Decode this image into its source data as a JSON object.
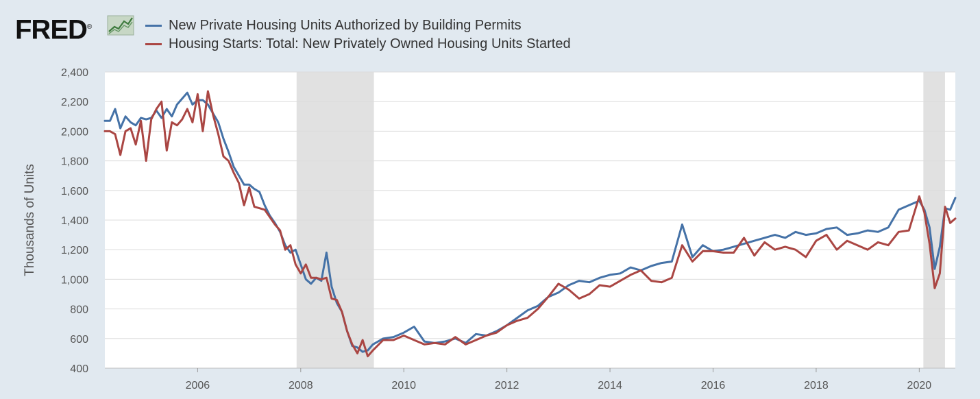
{
  "brand": {
    "name": "FRED",
    "registered_mark": "®"
  },
  "chart_data": {
    "type": "line",
    "title": "",
    "xlabel": "",
    "ylabel": "Thousands of Units",
    "ylim": [
      400,
      2400
    ],
    "yticks": [
      400,
      600,
      800,
      1000,
      1200,
      1400,
      1600,
      1800,
      2000,
      2200,
      2400
    ],
    "ytick_labels": [
      "400",
      "600",
      "800",
      "1,000",
      "1,200",
      "1,400",
      "1,600",
      "1,800",
      "2,000",
      "2,200",
      "2,400"
    ],
    "xlim": [
      2004.2,
      2020.7
    ],
    "xticks": [
      2006,
      2008,
      2010,
      2012,
      2014,
      2016,
      2018,
      2020
    ],
    "xtick_labels": [
      "2006",
      "2008",
      "2010",
      "2012",
      "2014",
      "2016",
      "2018",
      "2020"
    ],
    "grid": "horizontal",
    "legend_position": "top-left",
    "recessions": [
      [
        2007.92,
        2009.42
      ],
      [
        2020.08,
        2020.5
      ]
    ],
    "recession_color": "#e1e1e1",
    "series": [
      {
        "name": "New Private Housing Units Authorized by Building Permits",
        "color": "#4572a7",
        "x": [
          2004.2,
          2004.3,
          2004.4,
          2004.5,
          2004.6,
          2004.7,
          2004.8,
          2004.9,
          2005.0,
          2005.1,
          2005.2,
          2005.3,
          2005.4,
          2005.5,
          2005.6,
          2005.7,
          2005.8,
          2005.9,
          2006.0,
          2006.1,
          2006.2,
          2006.3,
          2006.4,
          2006.5,
          2006.6,
          2006.7,
          2006.8,
          2006.9,
          2007.0,
          2007.1,
          2007.2,
          2007.3,
          2007.4,
          2007.5,
          2007.6,
          2007.7,
          2007.8,
          2007.9,
          2008.0,
          2008.1,
          2008.2,
          2008.3,
          2008.4,
          2008.5,
          2008.6,
          2008.7,
          2008.8,
          2008.9,
          2009.0,
          2009.1,
          2009.2,
          2009.3,
          2009.4,
          2009.6,
          2009.8,
          2010.0,
          2010.2,
          2010.4,
          2010.6,
          2010.8,
          2011.0,
          2011.2,
          2011.4,
          2011.6,
          2011.8,
          2012.0,
          2012.2,
          2012.4,
          2012.6,
          2012.8,
          2013.0,
          2013.2,
          2013.4,
          2013.6,
          2013.8,
          2014.0,
          2014.2,
          2014.4,
          2014.6,
          2014.8,
          2015.0,
          2015.2,
          2015.4,
          2015.6,
          2015.8,
          2016.0,
          2016.2,
          2016.4,
          2016.6,
          2016.8,
          2017.0,
          2017.2,
          2017.4,
          2017.6,
          2017.8,
          2018.0,
          2018.2,
          2018.4,
          2018.6,
          2018.8,
          2019.0,
          2019.2,
          2019.4,
          2019.6,
          2019.8,
          2020.0,
          2020.1,
          2020.2,
          2020.3,
          2020.4,
          2020.5,
          2020.6,
          2020.7
        ],
        "values": [
          2070,
          2070,
          2150,
          2020,
          2100,
          2060,
          2040,
          2090,
          2080,
          2090,
          2140,
          2090,
          2150,
          2100,
          2180,
          2220,
          2260,
          2180,
          2210,
          2210,
          2180,
          2120,
          2060,
          1950,
          1860,
          1760,
          1700,
          1640,
          1640,
          1610,
          1590,
          1500,
          1430,
          1380,
          1320,
          1230,
          1180,
          1200,
          1100,
          1000,
          970,
          1010,
          990,
          1180,
          950,
          840,
          780,
          650,
          550,
          540,
          510,
          520,
          560,
          600,
          610,
          640,
          680,
          580,
          570,
          580,
          600,
          570,
          630,
          620,
          650,
          690,
          740,
          790,
          820,
          880,
          910,
          960,
          990,
          980,
          1010,
          1030,
          1040,
          1080,
          1060,
          1090,
          1110,
          1120,
          1370,
          1150,
          1230,
          1190,
          1200,
          1220,
          1240,
          1260,
          1280,
          1300,
          1280,
          1320,
          1300,
          1310,
          1340,
          1350,
          1300,
          1310,
          1330,
          1320,
          1350,
          1470,
          1500,
          1530,
          1470,
          1350,
          1070,
          1220,
          1480,
          1470,
          1550
        ]
      },
      {
        "name": "Housing Starts: Total: New Privately Owned Housing Units Started",
        "color": "#aa4643",
        "x": [
          2004.2,
          2004.3,
          2004.4,
          2004.5,
          2004.6,
          2004.7,
          2004.8,
          2004.9,
          2005.0,
          2005.1,
          2005.2,
          2005.3,
          2005.4,
          2005.5,
          2005.6,
          2005.7,
          2005.8,
          2005.9,
          2006.0,
          2006.1,
          2006.2,
          2006.3,
          2006.4,
          2006.5,
          2006.6,
          2006.7,
          2006.8,
          2006.9,
          2007.0,
          2007.1,
          2007.2,
          2007.3,
          2007.4,
          2007.5,
          2007.6,
          2007.7,
          2007.8,
          2007.9,
          2008.0,
          2008.1,
          2008.2,
          2008.3,
          2008.4,
          2008.5,
          2008.6,
          2008.7,
          2008.8,
          2008.9,
          2009.0,
          2009.1,
          2009.2,
          2009.3,
          2009.4,
          2009.6,
          2009.8,
          2010.0,
          2010.2,
          2010.4,
          2010.6,
          2010.8,
          2011.0,
          2011.2,
          2011.4,
          2011.6,
          2011.8,
          2012.0,
          2012.2,
          2012.4,
          2012.6,
          2012.8,
          2013.0,
          2013.2,
          2013.4,
          2013.6,
          2013.8,
          2014.0,
          2014.2,
          2014.4,
          2014.6,
          2014.8,
          2015.0,
          2015.2,
          2015.4,
          2015.6,
          2015.8,
          2016.0,
          2016.2,
          2016.4,
          2016.6,
          2016.8,
          2017.0,
          2017.2,
          2017.4,
          2017.6,
          2017.8,
          2018.0,
          2018.2,
          2018.4,
          2018.6,
          2018.8,
          2019.0,
          2019.2,
          2019.4,
          2019.6,
          2019.8,
          2020.0,
          2020.1,
          2020.2,
          2020.3,
          2020.4,
          2020.5,
          2020.6,
          2020.7
        ],
        "values": [
          2000,
          2000,
          1980,
          1840,
          2000,
          2020,
          1910,
          2070,
          1800,
          2080,
          2150,
          2200,
          1870,
          2060,
          2040,
          2080,
          2150,
          2060,
          2250,
          2000,
          2270,
          2110,
          1980,
          1830,
          1800,
          1720,
          1650,
          1500,
          1620,
          1490,
          1480,
          1470,
          1420,
          1370,
          1330,
          1200,
          1230,
          1100,
          1040,
          1100,
          1010,
          1010,
          1000,
          1010,
          870,
          860,
          780,
          650,
          560,
          500,
          590,
          480,
          520,
          590,
          590,
          620,
          590,
          560,
          570,
          560,
          610,
          560,
          590,
          620,
          640,
          690,
          720,
          740,
          800,
          880,
          970,
          930,
          870,
          900,
          960,
          950,
          990,
          1030,
          1060,
          990,
          980,
          1010,
          1230,
          1120,
          1190,
          1190,
          1180,
          1180,
          1280,
          1160,
          1250,
          1200,
          1220,
          1200,
          1150,
          1260,
          1300,
          1200,
          1260,
          1230,
          1200,
          1250,
          1230,
          1320,
          1330,
          1560,
          1450,
          1240,
          940,
          1040,
          1490,
          1380,
          1410
        ]
      }
    ]
  }
}
